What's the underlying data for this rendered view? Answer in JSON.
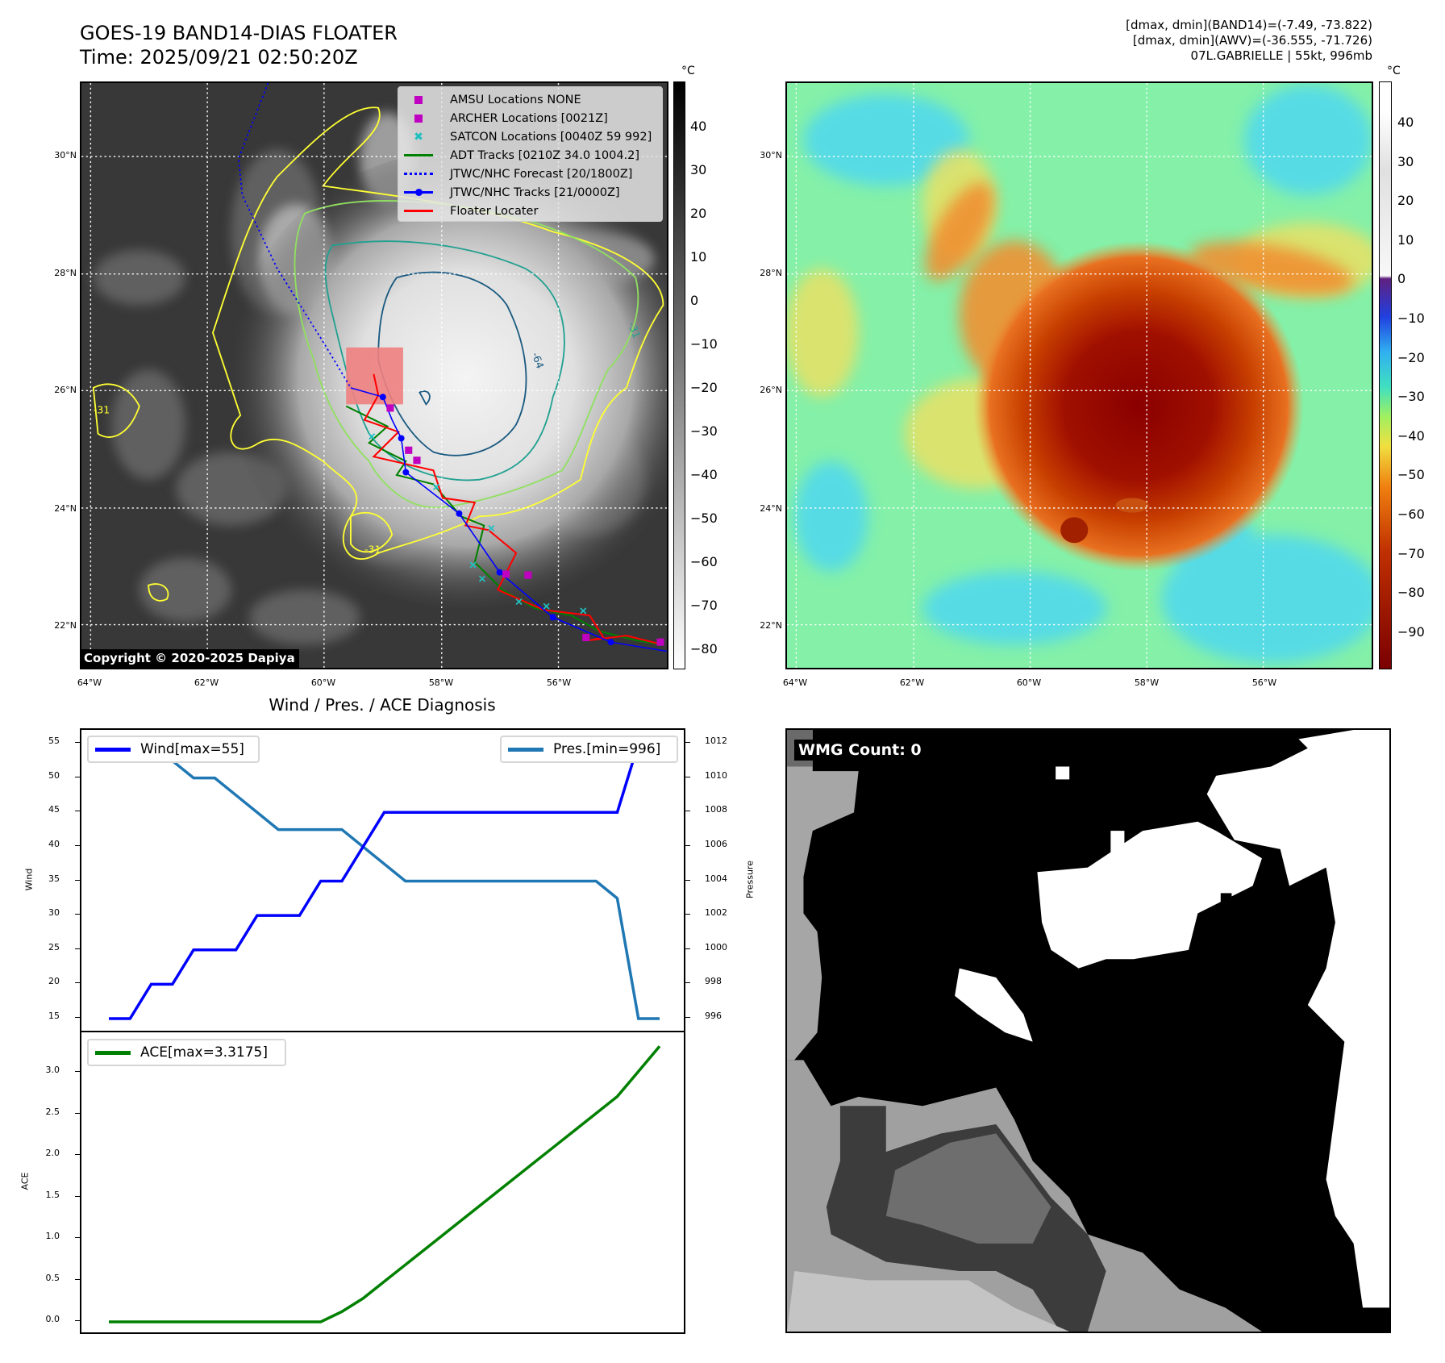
{
  "header": {
    "title_line1": "GOES-19 BAND14-DIAS FLOATER",
    "title_line2": "Time: 2025/09/21 02:50:20Z",
    "info_line1": "[dmax, dmin](BAND14)=(-7.49, -73.822)",
    "info_line2": "[dmax, dmin](AWV)=(-36.555, -71.726)",
    "info_line3": "07L.GABRIELLE | 55kt, 996mb"
  },
  "map": {
    "lat_labels": [
      "30°N",
      "28°N",
      "26°N",
      "24°N",
      "22°N"
    ],
    "lon_labels": [
      "64°W",
      "62°W",
      "60°W",
      "58°W",
      "56°W"
    ],
    "contour_labels": [
      "-64",
      "-31",
      "-31",
      "-31"
    ],
    "copyright": "Copyright © 2020-2025 Dapiya",
    "legend": [
      {
        "label": "AMSU Locations NONE",
        "color": "#c000c0",
        "symbol": "square"
      },
      {
        "label": "ARCHER Locations [0021Z]",
        "color": "#c000c0",
        "symbol": "square"
      },
      {
        "label": "SATCON Locations [0040Z 59 992]",
        "color": "#20c0c0",
        "symbol": "x"
      },
      {
        "label": "ADT Tracks [0210Z 34.0 1004.2]",
        "color": "#008000",
        "symbol": "line"
      },
      {
        "label": "JTWC/NHC Forecast [20/1800Z]",
        "color": "#0000ff",
        "symbol": "dotted"
      },
      {
        "label": "JTWC/NHC Tracks [21/0000Z]",
        "color": "#0000ff",
        "symbol": "line-dot"
      },
      {
        "label": "Floater Locater",
        "color": "#ff0000",
        "symbol": "line"
      }
    ]
  },
  "colorbar_left": {
    "unit": "°C",
    "ticks": [
      "40",
      "30",
      "20",
      "10",
      "0",
      "−10",
      "−20",
      "−30",
      "−40",
      "−50",
      "−60",
      "−70",
      "−80"
    ]
  },
  "colorbar_right": {
    "unit": "°C",
    "ticks": [
      "40",
      "30",
      "20",
      "10",
      "0",
      "−10",
      "−20",
      "−30",
      "−40",
      "−50",
      "−60",
      "−70",
      "−80",
      "−90"
    ]
  },
  "diagnosis": {
    "title": "Wind / Pres. / ACE Diagnosis",
    "wind_ylabel": "Wind",
    "pres_ylabel": "Pressure",
    "ace_ylabel": "ACE"
  },
  "wmg": {
    "label": "WMG Count: 0"
  },
  "chart_data": [
    {
      "type": "line",
      "title": "Wind / Pres. / ACE Diagnosis",
      "x": [
        0,
        1,
        2,
        3,
        4,
        5,
        6,
        7,
        8,
        9,
        10,
        11,
        12,
        13,
        14,
        15,
        16,
        17,
        18,
        19,
        20,
        21,
        22,
        23,
        24,
        25,
        26
      ],
      "series": [
        {
          "name": "Wind[max=55]",
          "axis": "left",
          "color": "#0000ff",
          "values": [
            15,
            15,
            20,
            20,
            25,
            25,
            25,
            30,
            30,
            30,
            35,
            35,
            40,
            45,
            45,
            45,
            45,
            45,
            45,
            45,
            45,
            45,
            45,
            45,
            45,
            55,
            55
          ]
        },
        {
          "name": "Pres.[min=996]",
          "axis": "right",
          "color": "#1f77b4",
          "values": [
            1012,
            1012,
            1011,
            1011,
            1010,
            1010,
            1009,
            1008,
            1007,
            1007,
            1007,
            1007,
            1006,
            1005,
            1004,
            1004,
            1004,
            1004,
            1004,
            1004,
            1004,
            1004,
            1004,
            1004,
            1003,
            996,
            996
          ]
        }
      ],
      "ylabel": "Wind",
      "ylabel_right": "Pressure",
      "ylim": [
        15,
        55
      ],
      "ylim_right": [
        996,
        1012
      ],
      "yticks": [
        "15",
        "20",
        "25",
        "30",
        "35",
        "40",
        "45",
        "50",
        "55"
      ],
      "yticks_right": [
        "996",
        "998",
        "1000",
        "1002",
        "1004",
        "1006",
        "1008",
        "1010",
        "1012"
      ],
      "legend": [
        "top-left",
        "top-right"
      ]
    },
    {
      "type": "line",
      "x": [
        0,
        1,
        2,
        3,
        4,
        5,
        6,
        7,
        8,
        9,
        10,
        11,
        12,
        13,
        14,
        15,
        16,
        17,
        18,
        19,
        20,
        21,
        22,
        23,
        24,
        25,
        26
      ],
      "series": [
        {
          "name": "ACE[max=3.3175]",
          "color": "#008000",
          "values": [
            0,
            0,
            0,
            0,
            0,
            0,
            0,
            0,
            0,
            0,
            0,
            0.1225,
            0.2825,
            0.485,
            0.6875,
            0.89,
            1.0925,
            1.295,
            1.4975,
            1.7,
            1.9025,
            2.105,
            2.3075,
            2.51,
            2.7125,
            3.015,
            3.3175
          ]
        }
      ],
      "ylabel": "ACE",
      "ylim": [
        0,
        3.3175
      ],
      "yticks": [
        "0.0",
        "0.5",
        "1.0",
        "1.5",
        "2.0",
        "2.5",
        "3.0"
      ],
      "legend": "top-left"
    }
  ]
}
